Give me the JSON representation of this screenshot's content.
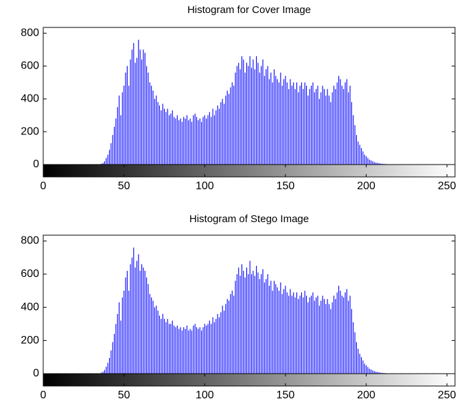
{
  "chart_data": [
    {
      "type": "bar",
      "title": "Histogram for Cover  Image",
      "color": "#0000ff",
      "xlim": [
        0,
        255
      ],
      "ylim": [
        0,
        835
      ],
      "xticks": [
        0,
        50,
        100,
        150,
        200,
        250
      ],
      "yticks": [
        0,
        200,
        400,
        600,
        800
      ],
      "x": [
        30,
        31,
        32,
        33,
        34,
        35,
        36,
        37,
        38,
        39,
        40,
        41,
        42,
        43,
        44,
        45,
        46,
        47,
        48,
        49,
        50,
        51,
        52,
        53,
        54,
        55,
        56,
        57,
        58,
        59,
        60,
        61,
        62,
        63,
        64,
        65,
        66,
        67,
        68,
        69,
        70,
        71,
        72,
        73,
        74,
        75,
        76,
        77,
        78,
        79,
        80,
        81,
        82,
        83,
        84,
        85,
        86,
        87,
        88,
        89,
        90,
        91,
        92,
        93,
        94,
        95,
        96,
        97,
        98,
        99,
        100,
        101,
        102,
        103,
        104,
        105,
        106,
        107,
        108,
        109,
        110,
        111,
        112,
        113,
        114,
        115,
        116,
        117,
        118,
        119,
        120,
        121,
        122,
        123,
        124,
        125,
        126,
        127,
        128,
        129,
        130,
        131,
        132,
        133,
        134,
        135,
        136,
        137,
        138,
        139,
        140,
        141,
        142,
        143,
        144,
        145,
        146,
        147,
        148,
        149,
        150,
        151,
        152,
        153,
        154,
        155,
        156,
        157,
        158,
        159,
        160,
        161,
        162,
        163,
        164,
        165,
        166,
        167,
        168,
        169,
        170,
        171,
        172,
        173,
        174,
        175,
        176,
        177,
        178,
        179,
        180,
        181,
        182,
        183,
        184,
        185,
        186,
        187,
        188,
        189,
        190,
        191,
        192,
        193,
        194,
        195,
        196,
        197,
        198,
        199,
        200,
        201,
        202,
        203,
        204,
        205,
        206,
        207,
        208,
        209,
        210,
        211,
        212,
        213,
        214,
        215,
        216,
        217,
        218,
        219,
        220
      ],
      "values": [
        0,
        0,
        0,
        0,
        0,
        2,
        5,
        10,
        20,
        40,
        60,
        90,
        130,
        180,
        230,
        280,
        350,
        420,
        300,
        440,
        480,
        560,
        600,
        480,
        640,
        700,
        740,
        620,
        650,
        760,
        700,
        640,
        700,
        680,
        600,
        560,
        500,
        480,
        450,
        400,
        420,
        380,
        360,
        330,
        370,
        340,
        320,
        340,
        300,
        310,
        330,
        290,
        280,
        300,
        270,
        280,
        260,
        290,
        280,
        300,
        270,
        280,
        260,
        300,
        310,
        290,
        270,
        280,
        260,
        290,
        300,
        280,
        300,
        320,
        290,
        340,
        300,
        330,
        360,
        340,
        380,
        400,
        370,
        420,
        450,
        430,
        470,
        500,
        480,
        560,
        600,
        620,
        580,
        660,
        640,
        560,
        620,
        600,
        660,
        590,
        640,
        580,
        660,
        620,
        560,
        600,
        640,
        540,
        580,
        600,
        520,
        560,
        500,
        580,
        540,
        520,
        500,
        560,
        480,
        520,
        540,
        500,
        460,
        520,
        480,
        500,
        460,
        500,
        440,
        480,
        500,
        460,
        500,
        480,
        420,
        460,
        480,
        500,
        440,
        460,
        480,
        400,
        440,
        480,
        460,
        420,
        460,
        420,
        380,
        440,
        480,
        460,
        500,
        540,
        520,
        480,
        460,
        500,
        520,
        440,
        480,
        380,
        300,
        240,
        180,
        140,
        120,
        100,
        80,
        60,
        50,
        40,
        30,
        25,
        20,
        15,
        12,
        10,
        8,
        6,
        5,
        4,
        3,
        2,
        1,
        1,
        0,
        0,
        0,
        0,
        0
      ]
    },
    {
      "type": "bar",
      "title": "Histogram of Stego  Image",
      "color": "#0000ff",
      "xlim": [
        0,
        255
      ],
      "ylim": [
        0,
        835
      ],
      "xticks": [
        0,
        50,
        100,
        150,
        200,
        250
      ],
      "yticks": [
        0,
        200,
        400,
        600,
        800
      ],
      "x": [
        30,
        31,
        32,
        33,
        34,
        35,
        36,
        37,
        38,
        39,
        40,
        41,
        42,
        43,
        44,
        45,
        46,
        47,
        48,
        49,
        50,
        51,
        52,
        53,
        54,
        55,
        56,
        57,
        58,
        59,
        60,
        61,
        62,
        63,
        64,
        65,
        66,
        67,
        68,
        69,
        70,
        71,
        72,
        73,
        74,
        75,
        76,
        77,
        78,
        79,
        80,
        81,
        82,
        83,
        84,
        85,
        86,
        87,
        88,
        89,
        90,
        91,
        92,
        93,
        94,
        95,
        96,
        97,
        98,
        99,
        100,
        101,
        102,
        103,
        104,
        105,
        106,
        107,
        108,
        109,
        110,
        111,
        112,
        113,
        114,
        115,
        116,
        117,
        118,
        119,
        120,
        121,
        122,
        123,
        124,
        125,
        126,
        127,
        128,
        129,
        130,
        131,
        132,
        133,
        134,
        135,
        136,
        137,
        138,
        139,
        140,
        141,
        142,
        143,
        144,
        145,
        146,
        147,
        148,
        149,
        150,
        151,
        152,
        153,
        154,
        155,
        156,
        157,
        158,
        159,
        160,
        161,
        162,
        163,
        164,
        165,
        166,
        167,
        168,
        169,
        170,
        171,
        172,
        173,
        174,
        175,
        176,
        177,
        178,
        179,
        180,
        181,
        182,
        183,
        184,
        185,
        186,
        187,
        188,
        189,
        190,
        191,
        192,
        193,
        194,
        195,
        196,
        197,
        198,
        199,
        200,
        201,
        202,
        203,
        204,
        205,
        206,
        207,
        208,
        209,
        210,
        211,
        212,
        213,
        214,
        215,
        216,
        217,
        218,
        219,
        220
      ],
      "values": [
        0,
        0,
        0,
        0,
        0,
        2,
        6,
        12,
        22,
        42,
        65,
        95,
        140,
        190,
        240,
        300,
        360,
        430,
        320,
        460,
        500,
        580,
        620,
        500,
        660,
        700,
        760,
        640,
        680,
        720,
        620,
        660,
        640,
        620,
        580,
        540,
        480,
        460,
        440,
        400,
        410,
        380,
        350,
        330,
        360,
        330,
        310,
        330,
        300,
        300,
        320,
        290,
        280,
        290,
        270,
        280,
        260,
        280,
        270,
        290,
        260,
        270,
        260,
        290,
        300,
        280,
        270,
        280,
        260,
        280,
        300,
        290,
        300,
        320,
        300,
        340,
        310,
        330,
        360,
        340,
        370,
        410,
        380,
        420,
        450,
        440,
        480,
        500,
        470,
        560,
        600,
        640,
        590,
        660,
        620,
        580,
        640,
        600,
        680,
        600,
        620,
        590,
        650,
        610,
        570,
        600,
        630,
        550,
        570,
        600,
        530,
        560,
        500,
        560,
        540,
        520,
        500,
        550,
        480,
        510,
        530,
        490,
        470,
        510,
        470,
        490,
        460,
        490,
        450,
        470,
        490,
        460,
        500,
        470,
        430,
        460,
        470,
        490,
        440,
        460,
        470,
        410,
        440,
        470,
        450,
        420,
        450,
        420,
        390,
        430,
        470,
        450,
        490,
        530,
        500,
        470,
        460,
        490,
        510,
        440,
        470,
        390,
        310,
        250,
        190,
        150,
        120,
        100,
        80,
        60,
        50,
        40,
        30,
        25,
        20,
        15,
        12,
        10,
        8,
        6,
        5,
        4,
        3,
        2,
        1,
        1,
        0,
        0,
        0,
        0,
        0
      ]
    }
  ]
}
